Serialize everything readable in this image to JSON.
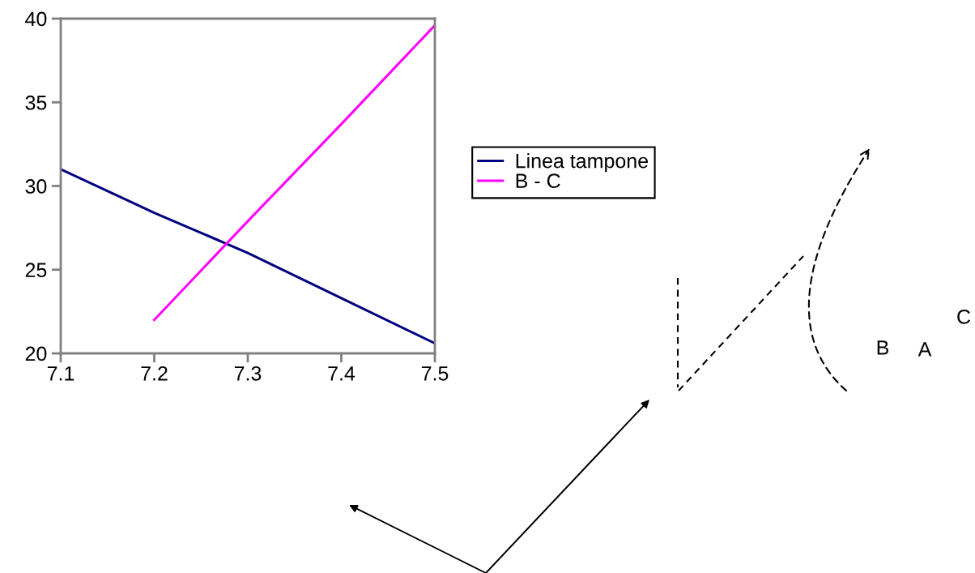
{
  "chart_data": {
    "type": "line",
    "x": [
      7.1,
      7.2,
      7.3,
      7.4,
      7.5
    ],
    "series": [
      {
        "name": "Linea tampone",
        "color": "#000080",
        "values": [
          31.0,
          28.4,
          26.0,
          23.3,
          20.6
        ]
      },
      {
        "name": "B - C",
        "color": "#ff00ff",
        "x": [
          7.2,
          7.3,
          7.4,
          7.5
        ],
        "values": [
          22.0,
          27.9,
          33.7,
          39.6
        ]
      }
    ],
    "xlim": [
      7.1,
      7.5
    ],
    "ylim": [
      20,
      40
    ],
    "xticks": [
      7.1,
      7.2,
      7.3,
      7.4,
      7.5
    ],
    "yticks": [
      20,
      25,
      30,
      35,
      40
    ],
    "grid": false,
    "legend": "right",
    "marker": "none",
    "line_style": "solid",
    "annotations": [
      "B",
      "A",
      "C"
    ]
  }
}
